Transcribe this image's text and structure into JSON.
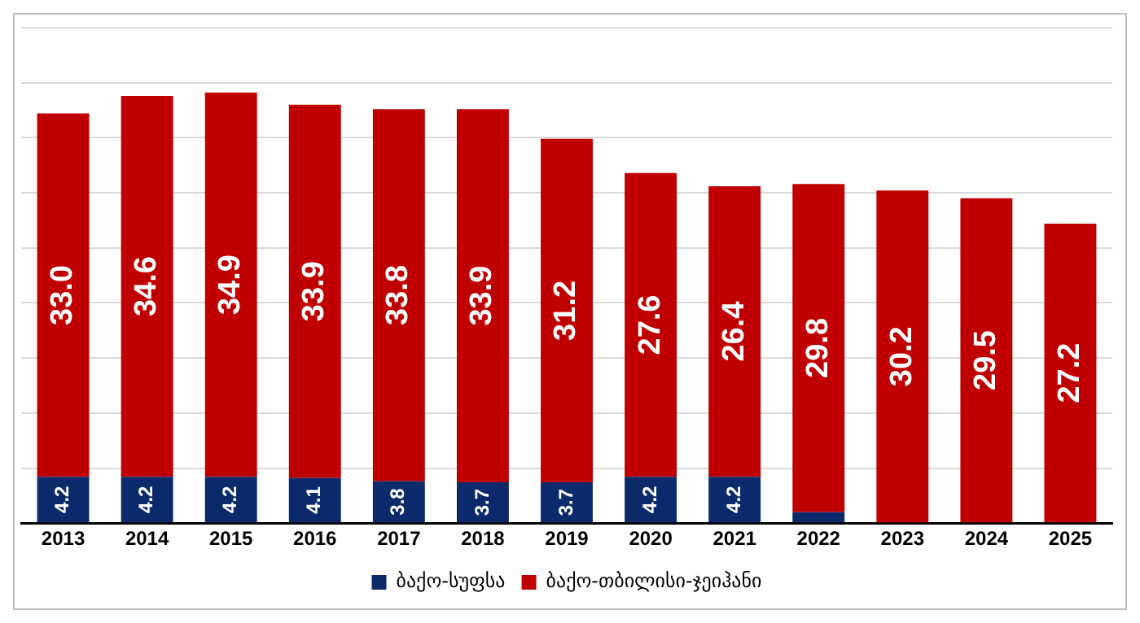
{
  "chart_data": {
    "type": "bar",
    "stacked": true,
    "categories": [
      "2013",
      "2014",
      "2015",
      "2016",
      "2017",
      "2018",
      "2019",
      "2020",
      "2021",
      "2022",
      "2023",
      "2024",
      "2025"
    ],
    "series": [
      {
        "name": "ბაქო-სუფსა",
        "color": "#0b2a6b",
        "values": [
          4.2,
          4.2,
          4.2,
          4.1,
          3.8,
          3.7,
          3.7,
          4.2,
          4.2,
          1.0,
          null,
          null,
          null
        ],
        "value_labels": [
          "4.2",
          "4.2",
          "4.2",
          "4.1",
          "3.8",
          "3.7",
          "3.7",
          "4.2",
          "4.2",
          null,
          null,
          null,
          null
        ]
      },
      {
        "name": "ბაქო-თბილისი-ჯეიჰანი",
        "color": "#c00000",
        "values": [
          33.0,
          34.6,
          34.9,
          33.9,
          33.8,
          33.9,
          31.2,
          27.6,
          26.4,
          29.8,
          30.2,
          29.5,
          27.2
        ],
        "value_labels": [
          "33.0",
          "34.6",
          "34.9",
          "33.9",
          "33.8",
          "33.9",
          "31.2",
          "27.6",
          "26.4",
          "29.8",
          "30.2",
          "29.5",
          "27.2"
        ]
      }
    ],
    "ylim": [
      0,
      45
    ],
    "yticks": [
      {
        "value": 0,
        "label": null
      },
      {
        "value": 5,
        "label": null
      },
      {
        "value": 10,
        "label": null
      },
      {
        "value": 15,
        "label": null
      },
      {
        "value": 20,
        "label": null
      },
      {
        "value": 25,
        "label": null
      },
      {
        "value": 30,
        "label": null
      },
      {
        "value": 35,
        "label": null
      },
      {
        "value": 40,
        "label": null
      },
      {
        "value": 45,
        "label": null
      }
    ],
    "grid": "y",
    "tick_labels": "x",
    "legend": "bottom"
  }
}
